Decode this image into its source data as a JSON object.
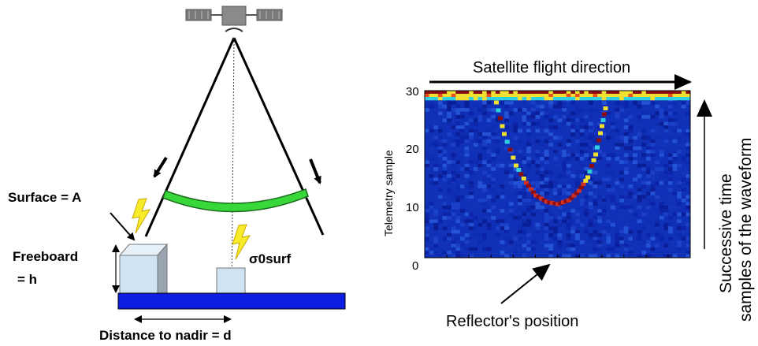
{
  "left_diagram": {
    "surface_label": "Surface =  A",
    "freeboard_label_line1": "Freeboard",
    "freeboard_label_line2": "= h",
    "sigma_label": "σ0surf",
    "distance_label": "Distance to nadir = d"
  },
  "right_plot": {
    "flight_direction_label": "Satellite flight direction",
    "ylabel": "Telemetry sample",
    "y_ticks": [
      "30",
      "20",
      "10",
      "0"
    ],
    "ylim": [
      0,
      30
    ],
    "side_label_line1": "Successive time",
    "side_label_line2": "samples of the waveform",
    "reflector_label": "Reflector's position",
    "colors": {
      "background": "#1030b8",
      "hot": "#8b0d10",
      "warm": "#f0e030",
      "cool": "#30d0e0"
    }
  }
}
